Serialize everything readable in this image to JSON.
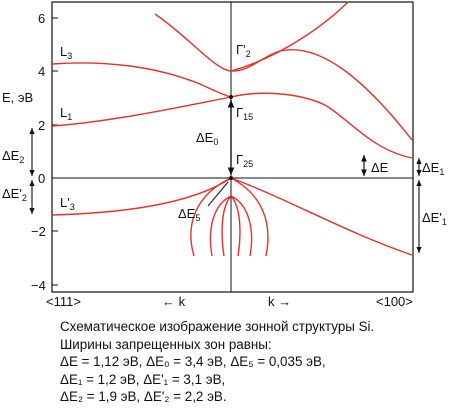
{
  "axis": {
    "ylabel": "E, эВ",
    "yticks": [
      "6",
      "4",
      "2",
      "0",
      "−2",
      "−4"
    ],
    "x_left": "<111>",
    "x_right": "<100>",
    "k_left": "← k",
    "k_right": "k →"
  },
  "points": {
    "L3": "L",
    "L3_sub": "3",
    "L1": "L",
    "L1_sub": "1",
    "L3p": "L'",
    "L3p_sub": "3",
    "G2p": "Γ'",
    "G2p_sub": "2",
    "G15": "Γ",
    "G15_sub": "15",
    "G25": "Γ",
    "G25_sub": "25"
  },
  "gaps": {
    "dE0": "ΔE",
    "dE0_sub": "0",
    "dE": "ΔE",
    "dE5": "ΔE",
    "dE5_sub": "5",
    "dE2": "ΔE",
    "dE2_sub": "2",
    "dE2p": "ΔE'",
    "dE2p_sub": "2",
    "dE1": "ΔE",
    "dE1_sub": "1",
    "dE1p": "ΔE'",
    "dE1p_sub": "1"
  },
  "caption": {
    "line1": "Схематическое изображение зонной структуры Si.",
    "line2": "Ширины запрещенных зон равны:",
    "line3": "ΔE = 1,12 эВ, ΔE₀ = 3,4 эВ, ΔE₅ = 0,035 эВ,",
    "line4": "ΔE₁ = 1,2 эВ, ΔE'₁ = 3,1 эВ,",
    "line5": "ΔE₂ = 1,9 эВ, ΔE'₂ = 2,2 эВ."
  },
  "colors": {
    "band": "#e8302a",
    "axis": "#111111"
  }
}
